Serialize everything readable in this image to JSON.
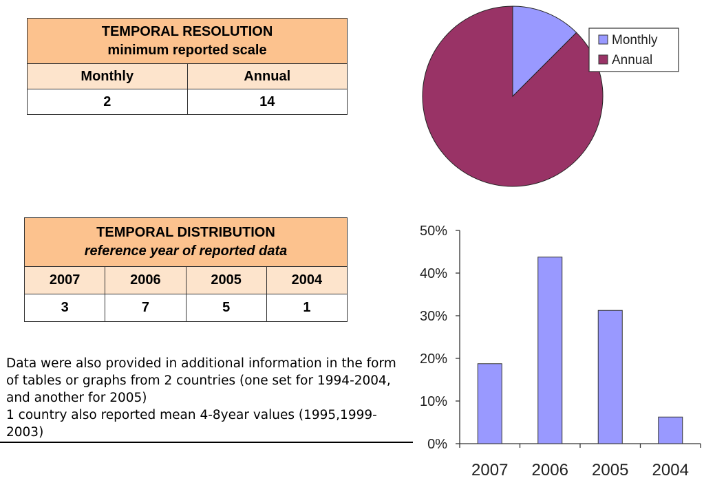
{
  "table_resolution": {
    "title": "TEMPORAL RESOLUTION",
    "subtitle": "minimum reported scale",
    "columns": [
      "Monthly",
      "Annual"
    ],
    "values": [
      "2",
      "14"
    ]
  },
  "table_distribution": {
    "title": "TEMPORAL DISTRIBUTION",
    "subtitle": "reference year of reported data",
    "columns": [
      "2007",
      "2006",
      "2005",
      "2004"
    ],
    "values": [
      "3",
      "7",
      "5",
      "1"
    ]
  },
  "note": {
    "line1": "Data were also provided in additional information in the form of tables or graphs from 2 countries (one set for 1994-2004, and another for 2005)",
    "line2": "1 country also reported mean 4-8year values (1995,1999-2003)"
  },
  "chart_data": [
    {
      "type": "pie",
      "categories": [
        "Monthly",
        "Annual"
      ],
      "values": [
        2,
        14
      ],
      "colors": [
        "#9999ff",
        "#993366"
      ],
      "legend": "top-right"
    },
    {
      "type": "bar",
      "categories": [
        "2007",
        "2006",
        "2005",
        "2004"
      ],
      "values": [
        0.1875,
        0.4375,
        0.3125,
        0.0625
      ],
      "ylim": [
        0,
        0.5
      ],
      "yticks": [
        "0%",
        "10%",
        "20%",
        "30%",
        "40%",
        "50%"
      ],
      "color": "#9999ff"
    }
  ]
}
